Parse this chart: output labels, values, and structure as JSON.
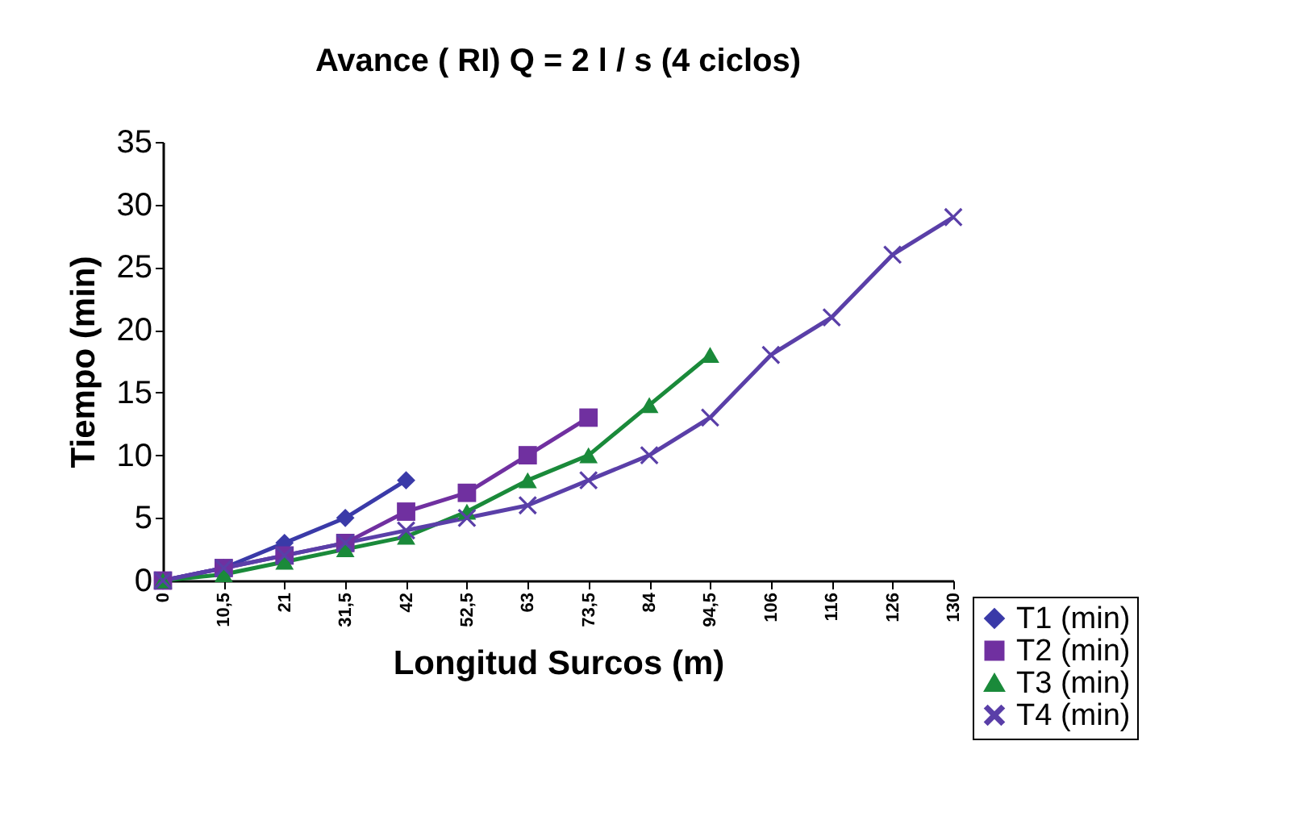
{
  "chart_data": {
    "type": "line",
    "title": "Avance ( RI) Q = 2 l / s (4 ciclos)",
    "xlabel": "Longitud Surcos (m)",
    "ylabel": "Tiempo (min)",
    "categories": [
      "0",
      "10,5",
      "21",
      "31,5",
      "42",
      "52,5",
      "63",
      "73,5",
      "84",
      "94,5",
      "106",
      "116",
      "126",
      "130"
    ],
    "series": [
      {
        "name": "T1 (min)",
        "color": "#3a3aa8",
        "marker": "diamond",
        "values": [
          0,
          1,
          3,
          5,
          8,
          null,
          null,
          null,
          null,
          null,
          null,
          null,
          null,
          null
        ]
      },
      {
        "name": "T2 (min)",
        "color": "#7030a0",
        "marker": "square",
        "values": [
          0,
          1,
          2,
          3,
          5.5,
          7,
          10,
          13,
          null,
          null,
          null,
          null,
          null,
          null
        ]
      },
      {
        "name": "T3 (min)",
        "color": "#1a8a3a",
        "marker": "triangle",
        "values": [
          0,
          0.5,
          1.5,
          2.5,
          3.5,
          5.5,
          8,
          10,
          14,
          18,
          null,
          null,
          null,
          null
        ]
      },
      {
        "name": "T4 (min)",
        "color": "#5a3fa8",
        "marker": "cross",
        "values": [
          0,
          1,
          2,
          3,
          4,
          5,
          6,
          8,
          10,
          13,
          18,
          21,
          26,
          29
        ]
      }
    ],
    "ylim": [
      0,
      35
    ],
    "yticks": [
      0,
      5,
      10,
      15,
      20,
      25,
      30,
      35
    ],
    "grid": false,
    "legend": "bottom right"
  }
}
